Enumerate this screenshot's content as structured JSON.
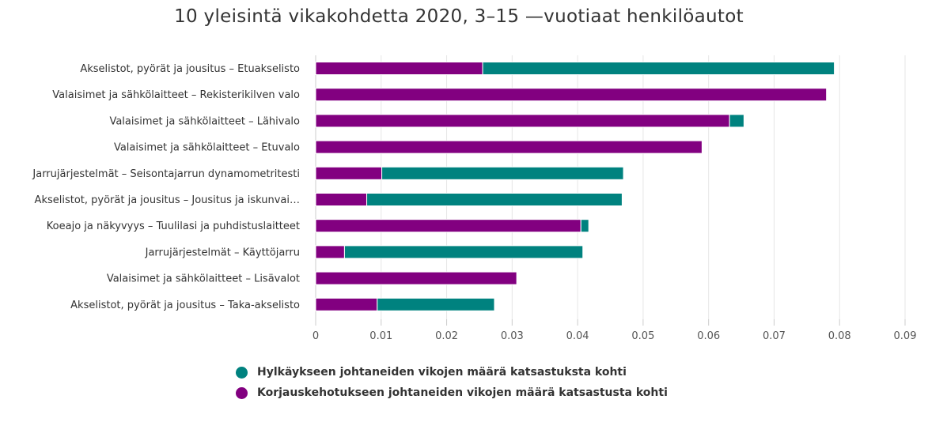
{
  "title": "10 yleisintä vikakohdetta 2020, 3–15 —vuotiaat henkilöautot",
  "colors": {
    "hylkays": "#00827f",
    "korjaus": "#820080",
    "grid": "#e6e6e6"
  },
  "chart_data": {
    "type": "bar",
    "orientation": "horizontal",
    "stacked": true,
    "title": "10 yleisintä vikakohdetta 2020, 3–15 —vuotiaat henkilöautot",
    "categories": [
      "Akselistot, pyörät ja jousitus – Etuakselisto",
      "Valaisimet ja sähkölaitteet – Rekisterikilven valo",
      "Valaisimet ja sähkölaitteet – Lähivalo",
      "Valaisimet ja sähkölaitteet – Etuvalo",
      "Jarrujärjestelmät – Seisontajarrun dynamometritesti",
      "Akselistot, pyörät ja jousitus – Jousitus ja iskunvai…",
      "Koeajo ja näkyvyys – Tuulilasi ja puhdistuslaitteet",
      "Jarrujärjestelmät – Käyttöjarru",
      "Valaisimet ja sähkölaitteet – Lisävalot",
      "Akselistot, pyörät ja jousitus – Taka-akselisto"
    ],
    "series": [
      {
        "name": "Korjauskehotukseen johtaneiden vikojen määrä katsastusta kohti",
        "color": "#820080",
        "values": [
          0.0255,
          0.078,
          0.0632,
          0.059,
          0.0101,
          0.0078,
          0.0405,
          0.0044,
          0.0307,
          0.0094
        ]
      },
      {
        "name": "Hylkäykseen johtaneiden vikojen määrä katsastuksta kohti",
        "color": "#00827f",
        "values": [
          0.0537,
          0.0,
          0.0022,
          0.0,
          0.0369,
          0.039,
          0.0012,
          0.0364,
          0.0,
          0.0179
        ]
      }
    ],
    "xlim": [
      0,
      0.09
    ],
    "xticks": [
      "0",
      "0.01",
      "0.02",
      "0.03",
      "0.04",
      "0.05",
      "0.06",
      "0.07",
      "0.08",
      "0.09"
    ],
    "legend_order": [
      "Hylkäykseen johtaneiden vikojen määrä katsastuksta kohti",
      "Korjauskehotukseen johtaneiden vikojen määrä katsastusta kohti"
    ],
    "legend_position": "bottom",
    "grid": true
  }
}
